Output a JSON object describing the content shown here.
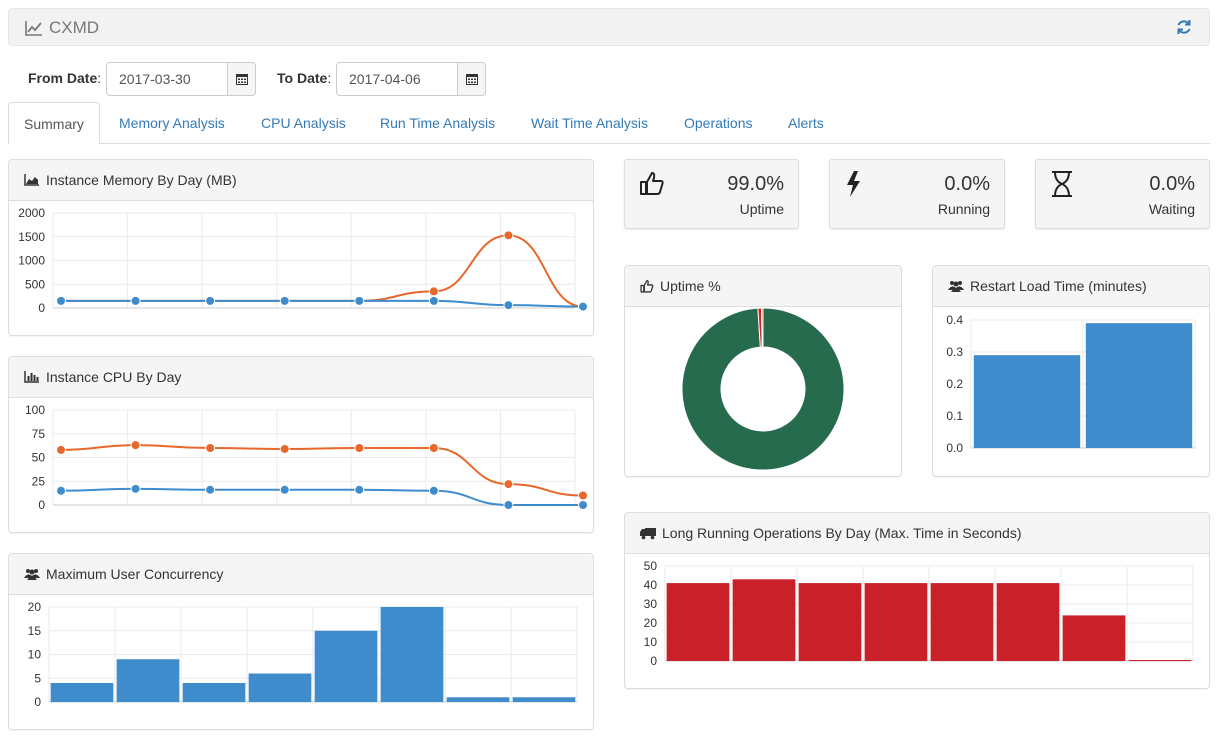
{
  "app": {
    "title": "CXMD"
  },
  "filters": {
    "from_label": "From Date",
    "from_value": "2017-03-30",
    "to_label": "To Date",
    "to_value": "2017-04-06"
  },
  "tabs": [
    {
      "label": "Summary"
    },
    {
      "label": "Memory Analysis"
    },
    {
      "label": "CPU Analysis"
    },
    {
      "label": "Run Time Analysis"
    },
    {
      "label": "Wait Time Analysis"
    },
    {
      "label": "Operations"
    },
    {
      "label": "Alerts"
    }
  ],
  "stats": [
    {
      "value": "99.0%",
      "label": "Uptime",
      "icon": "thumbs-up-icon"
    },
    {
      "value": "0.0%",
      "label": "Running",
      "icon": "bolt-icon"
    },
    {
      "value": "0.0%",
      "label": "Waiting",
      "icon": "hourglass-icon"
    }
  ],
  "panels": {
    "memory": "Instance Memory By Day (MB)",
    "cpu": "Instance CPU By Day",
    "users": "Maximum User Concurrency",
    "uptime": "Uptime %",
    "restart": "Restart Load Time (minutes)",
    "longops": "Long Running Operations By Day (Max. Time in Seconds)"
  },
  "colors": {
    "blue": "#3f8ccd",
    "orange": "#e8672a",
    "green": "#276b4f",
    "red": "#c9202a",
    "link": "#337ab7"
  },
  "chart_data": [
    {
      "id": "memory",
      "type": "line",
      "ylim": [
        0,
        2000
      ],
      "yticks": [
        "2000",
        "1500",
        "1000",
        "500",
        "0"
      ],
      "series": [
        {
          "color": "#e8672a",
          "values": [
            150,
            150,
            150,
            150,
            150,
            350,
            1530,
            30
          ]
        },
        {
          "color": "#3f8ccd",
          "values": [
            150,
            150,
            150,
            150,
            150,
            150,
            60,
            30
          ]
        }
      ]
    },
    {
      "id": "cpu",
      "type": "line",
      "ylim": [
        0,
        100
      ],
      "yticks": [
        "100",
        "75",
        "50",
        "25",
        "0"
      ],
      "series": [
        {
          "color": "#e8672a",
          "values": [
            58,
            63,
            60,
            59,
            60,
            60,
            22,
            10
          ]
        },
        {
          "color": "#3f8ccd",
          "values": [
            15,
            17,
            16,
            16,
            16,
            15,
            0,
            0
          ]
        }
      ]
    },
    {
      "id": "users",
      "type": "bar",
      "ylim": [
        0,
        20
      ],
      "yticks": [
        "20",
        "15",
        "10",
        "5",
        "0"
      ],
      "color": "#3f8ccd",
      "values": [
        4,
        9,
        4,
        6,
        15,
        20,
        1,
        1
      ]
    },
    {
      "id": "uptime",
      "type": "pie",
      "slices": [
        {
          "value": 99.0,
          "color": "#276b4f"
        },
        {
          "value": 0.7,
          "color": "#c9202a"
        },
        {
          "value": 0.3,
          "color": "#e8672a"
        }
      ]
    },
    {
      "id": "restart",
      "type": "bar",
      "ylim": [
        0,
        0.4
      ],
      "yticks": [
        "0.4",
        "0.3",
        "0.2",
        "0.1",
        "0.0"
      ],
      "color": "#3f8ccd",
      "values": [
        0.29,
        0.39
      ]
    },
    {
      "id": "longops",
      "type": "bar",
      "ylim": [
        0,
        50
      ],
      "yticks": [
        "50",
        "40",
        "30",
        "20",
        "10",
        "0"
      ],
      "color": "#c9202a",
      "values": [
        41,
        43,
        41,
        41,
        41,
        41,
        24,
        0
      ]
    }
  ]
}
